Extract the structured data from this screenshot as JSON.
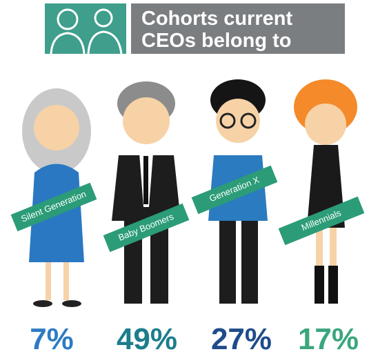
{
  "chart_data": {
    "type": "pictograph",
    "title": [
      "Cohorts current",
      "CEOs belong to"
    ],
    "categories": [
      "Silent Generation",
      "Baby Boomers",
      "Generation X",
      "Millennials"
    ],
    "values": [
      7,
      49,
      27,
      17
    ],
    "value_labels": [
      "7%",
      "49%",
      "27%",
      "17%"
    ],
    "colors": [
      "#2e7bc4",
      "#1c7d8c",
      "#1f4c8a",
      "#3aa67c"
    ]
  }
}
